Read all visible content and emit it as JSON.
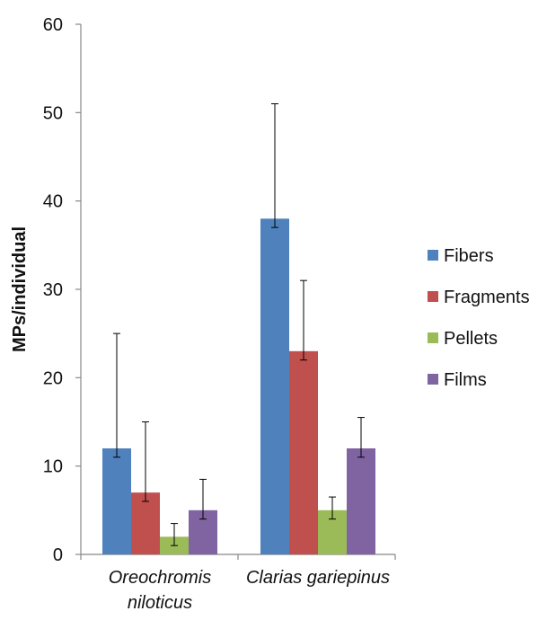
{
  "chart_data": {
    "type": "bar",
    "title": "",
    "xlabel": "",
    "ylabel": "MPs/individual",
    "ylim": [
      0,
      60
    ],
    "yticks": [
      0,
      10,
      20,
      30,
      40,
      50,
      60
    ],
    "grid": false,
    "legend_position": "right",
    "categories": [
      [
        "Oreochromis",
        "niloticus"
      ],
      [
        "Clarias gariepinus"
      ]
    ],
    "series": [
      {
        "name": "Fibers",
        "color": "#4f81bd",
        "values": [
          12,
          38
        ],
        "error_low": [
          11,
          37
        ],
        "error_high": [
          25,
          51
        ]
      },
      {
        "name": "Fragments",
        "color": "#c0504d",
        "values": [
          7,
          23
        ],
        "error_low": [
          6,
          22
        ],
        "error_high": [
          15,
          31
        ]
      },
      {
        "name": "Pellets",
        "color": "#9bbb59",
        "values": [
          2,
          5
        ],
        "error_low": [
          1,
          4
        ],
        "error_high": [
          3.5,
          6.5
        ]
      },
      {
        "name": "Films",
        "color": "#8064a2",
        "values": [
          5,
          12
        ],
        "error_low": [
          4,
          11
        ],
        "error_high": [
          8.5,
          15.5
        ]
      }
    ]
  }
}
